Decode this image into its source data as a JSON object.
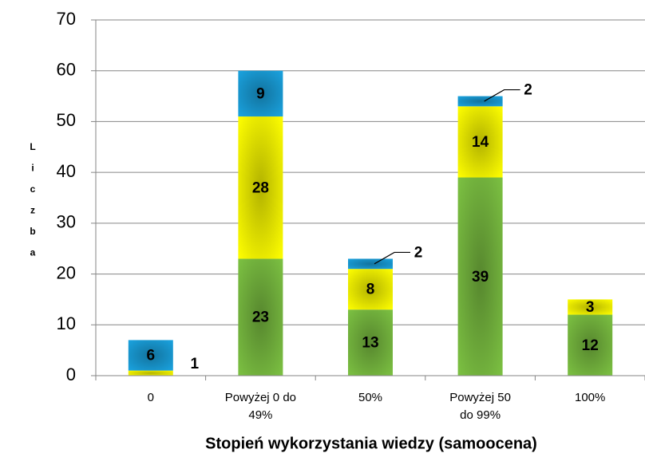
{
  "chart_data": {
    "type": "stacked_bar",
    "y_label": "Liczba",
    "x_label": "Stopień wykorzystania wiedzy (samoocena)",
    "categories": [
      "0",
      "Powyżej 0 do 49%",
      "50%",
      "Powyżej 50 do 99%",
      "100%"
    ],
    "series": [
      {
        "color": "#7cc142",
        "values": [
          0,
          23,
          13,
          39,
          12
        ]
      },
      {
        "color": "#ffff00",
        "values": [
          1,
          28,
          8,
          14,
          3
        ]
      },
      {
        "color": "#1aa3e0",
        "values": [
          6,
          9,
          2,
          2,
          0
        ]
      }
    ],
    "ylim": [
      0,
      70
    ],
    "yticks": [
      0,
      10,
      20,
      30,
      40,
      50,
      60,
      70
    ],
    "grid": true
  }
}
